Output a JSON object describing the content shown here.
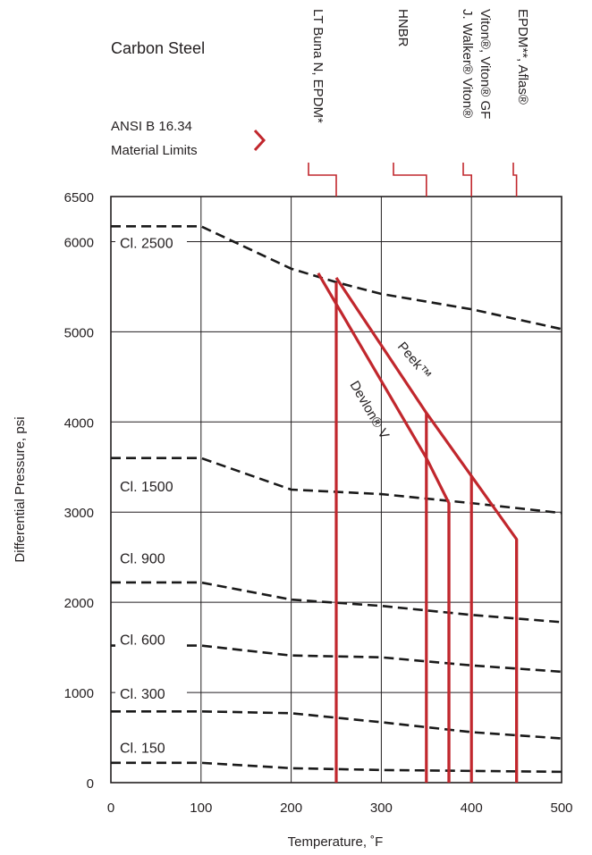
{
  "chart_data": {
    "type": "line",
    "title": "Carbon Steel",
    "subtitle_lines": [
      "ANSI B 16.34",
      "Material Limits"
    ],
    "xlabel": "Temperature, ˚F",
    "ylabel": "Differential Pressure, psi",
    "xlim": [
      0,
      500
    ],
    "ylim": [
      0,
      6500
    ],
    "x_ticks": [
      0,
      100,
      200,
      300,
      400,
      500
    ],
    "y_ticks": [
      0,
      1000,
      2000,
      3000,
      4000,
      5000,
      6000,
      6500
    ],
    "grid": true,
    "colors": {
      "limit": "#c1272d",
      "curve": "#1a1a1a",
      "grid": "#231f20"
    },
    "pressure_classes": [
      {
        "name": "Cl. 2500",
        "x": [
          0,
          100,
          200,
          250,
          300,
          400,
          500
        ],
        "y": [
          6170,
          6170,
          5700,
          5550,
          5420,
          5250,
          5030
        ]
      },
      {
        "name": "Cl. 1500",
        "x": [
          0,
          100,
          200,
          300,
          400,
          500
        ],
        "y": [
          3600,
          3600,
          3250,
          3200,
          3100,
          2990
        ]
      },
      {
        "name": "Cl. 900",
        "x": [
          0,
          100,
          200,
          300,
          400,
          500
        ],
        "y": [
          2220,
          2220,
          2030,
          1960,
          1860,
          1780
        ]
      },
      {
        "name": "Cl. 600",
        "x": [
          0,
          100,
          200,
          300,
          400,
          500
        ],
        "y": [
          1520,
          1520,
          1410,
          1390,
          1300,
          1230
        ]
      },
      {
        "name": "Cl. 300",
        "x": [
          0,
          100,
          200,
          300,
          400,
          500
        ],
        "y": [
          790,
          790,
          770,
          670,
          560,
          490
        ]
      },
      {
        "name": "Cl. 150",
        "x": [
          0,
          100,
          200,
          300,
          400,
          500
        ],
        "y": [
          220,
          220,
          160,
          140,
          130,
          120
        ]
      }
    ],
    "seat_curves": [
      {
        "name": "Peek™",
        "x": [
          250,
          350,
          450,
          450
        ],
        "y": [
          5600,
          4100,
          2700,
          0
        ]
      },
      {
        "name": "Devlon® V",
        "x": [
          230,
          350,
          375,
          375
        ],
        "y": [
          5650,
          3600,
          3100,
          0
        ]
      }
    ],
    "material_limits": [
      {
        "label": "LT Buna N, EPDM*",
        "temp": 250
      },
      {
        "label": "HNBR",
        "temp": 350
      },
      {
        "label_lines": [
          "Viton®, Viton® GF",
          "J. Walker® Viton®"
        ],
        "temp": 400
      },
      {
        "label": "EPDM**, Aflas®",
        "temp": 450
      }
    ],
    "verticals": [
      {
        "x": 250,
        "y_top": 5550
      },
      {
        "x": 350,
        "y_top": 4100
      },
      {
        "x": 375,
        "y_top": 3100
      },
      {
        "x": 400,
        "y_top": 3400
      },
      {
        "x": 450,
        "y_top": 2700
      }
    ]
  }
}
